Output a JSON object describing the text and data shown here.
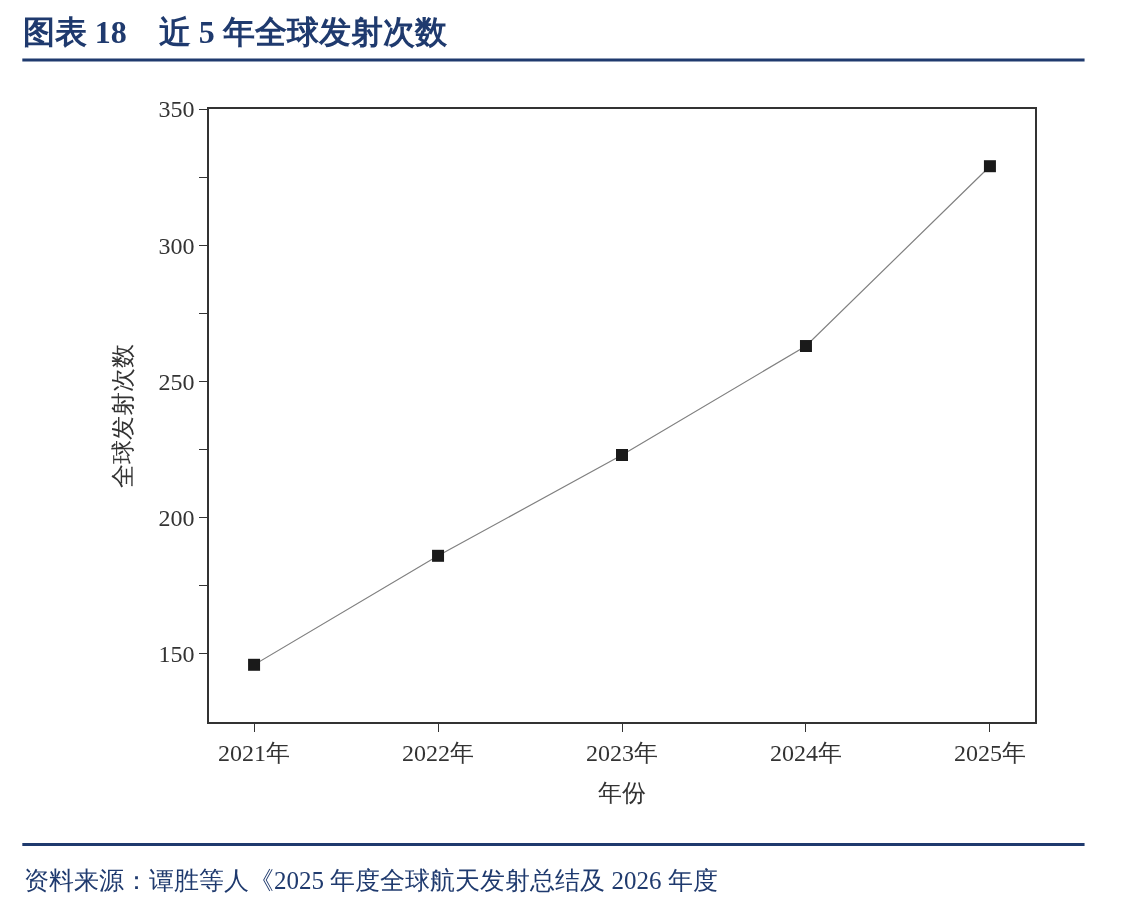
{
  "chart_data": {
    "type": "line",
    "title": "图表 18　近 5 年全球发射次数",
    "xlabel": "年份",
    "ylabel": "全球发射次数",
    "categories": [
      "2021年",
      "2022年",
      "2023年",
      "2024年",
      "2025年"
    ],
    "series": [
      {
        "color": "#808080",
        "values": [
          146,
          186,
          223,
          263,
          329
        ]
      }
    ],
    "ylim": [
      125,
      350
    ],
    "yticks": [
      150,
      {
        "value": 175,
        "label": null
      },
      200,
      {
        "value": 225,
        "label": null
      },
      250,
      {
        "value": 275,
        "label": null
      },
      300,
      {
        "value": 325,
        "label": null
      },
      350
    ],
    "marker": "square",
    "line_style": "solid",
    "annotations": [
      "资料来源：谭胜等人《2025 年度全球航天发射总结及 2026 年度"
    ]
  }
}
